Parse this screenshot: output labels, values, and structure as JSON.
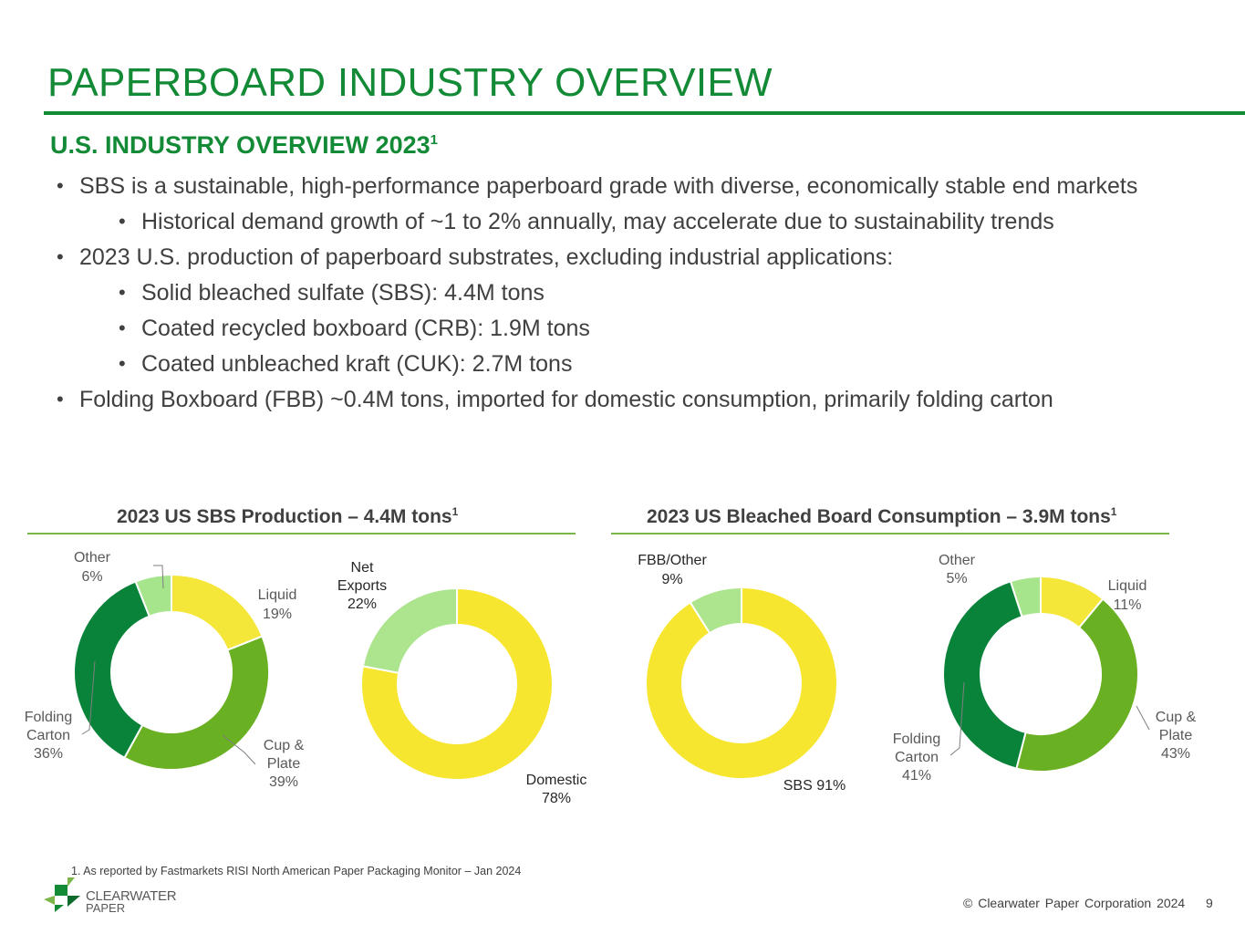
{
  "slide": {
    "title": "PAPERBOARD INDUSTRY OVERVIEW",
    "subtitle": "U.S. INDUSTRY OVERVIEW 2023",
    "subtitle_sup": "1"
  },
  "bullets": [
    {
      "level": 1,
      "text": "SBS is a sustainable, high-performance paperboard grade with diverse, economically stable end markets"
    },
    {
      "level": 2,
      "text": "Historical demand growth of ~1 to 2% annually, may accelerate due to sustainability trends"
    },
    {
      "level": 1,
      "text": "2023 U.S. production of paperboard substrates, excluding industrial applications:"
    },
    {
      "level": 2,
      "text": "Solid bleached sulfate (SBS): 4.4M tons"
    },
    {
      "level": 2,
      "text": "Coated recycled boxboard (CRB): 1.9M tons"
    },
    {
      "level": 2,
      "text": "Coated unbleached kraft (CUK): 2.7M tons"
    },
    {
      "level": 1,
      "text": "Folding Boxboard (FBB) ~0.4M tons, imported for domestic consumption, primarily folding carton"
    }
  ],
  "charts_header": {
    "left_title": "2023 US SBS Production – 4.4M tons",
    "left_sup": "1",
    "right_title": "2023 US Bleached Board Consumption – 3.9M tons",
    "right_sup": "1"
  },
  "chart_data": [
    {
      "type": "pie",
      "style": "donut",
      "group_title": "2023 US SBS Production – 4.4M tons",
      "slices": [
        {
          "label": "Liquid",
          "value": 19,
          "color": "#f5e63a"
        },
        {
          "label": "Cup & Plate",
          "value": 39,
          "color": "#6ab023"
        },
        {
          "label": "Folding Carton",
          "value": 36,
          "color": "#0a833a"
        },
        {
          "label": "Other",
          "value": 6,
          "color": "#a7e58c"
        }
      ]
    },
    {
      "type": "pie",
      "style": "donut",
      "group_title": "2023 US SBS Production – 4.4M tons",
      "slices": [
        {
          "label": "Domestic",
          "value": 78,
          "color": "#f7e62f"
        },
        {
          "label": "Net Exports",
          "value": 22,
          "color": "#ade48e"
        }
      ]
    },
    {
      "type": "pie",
      "style": "donut",
      "group_title": "2023 US Bleached Board Consumption – 3.9M tons",
      "slices": [
        {
          "label": "SBS",
          "value": 91,
          "color": "#f7e62f"
        },
        {
          "label": "FBB/Other",
          "value": 9,
          "color": "#ade48e"
        }
      ]
    },
    {
      "type": "pie",
      "style": "donut",
      "group_title": "2023 US Bleached Board Consumption – 3.9M tons",
      "slices": [
        {
          "label": "Liquid",
          "value": 11,
          "color": "#f5e63a"
        },
        {
          "label": "Cup & Plate",
          "value": 43,
          "color": "#6ab023"
        },
        {
          "label": "Folding Carton",
          "value": 41,
          "color": "#0a833a"
        },
        {
          "label": "Other",
          "value": 5,
          "color": "#a7e58c"
        }
      ]
    }
  ],
  "chart_labels": {
    "c1": {
      "other": "Other",
      "other_pct": "6%",
      "liquid": "Liquid",
      "liquid_pct": "19%",
      "cup1": "Cup &",
      "cup2": "Plate",
      "cup_pct": "39%",
      "fold1": "Folding",
      "fold2": "Carton",
      "fold_pct": "36%"
    },
    "c2": {
      "net1": "Net",
      "net2": "Exports",
      "net_pct": "22%",
      "dom": "Domestic",
      "dom_pct": "78%"
    },
    "c3": {
      "fbb": "FBB/Other",
      "fbb_pct": "9%",
      "sbs": "SBS 91%"
    },
    "c4": {
      "other": "Other",
      "other_pct": "5%",
      "liquid": "Liquid",
      "liquid_pct": "11%",
      "cup1": "Cup &",
      "cup2": "Plate",
      "cup_pct": "43%",
      "fold1": "Folding",
      "fold2": "Carton",
      "fold_pct": "41%"
    }
  },
  "footer": {
    "footnote": "1.  As reported by Fastmarkets RISI North American Paper Packaging Monitor – Jan 2024",
    "logo_line1": "CLEARWATER",
    "logo_line2": "PAPER",
    "copyright": "© Clearwater Paper Corporation 2024",
    "page_number": "9"
  }
}
